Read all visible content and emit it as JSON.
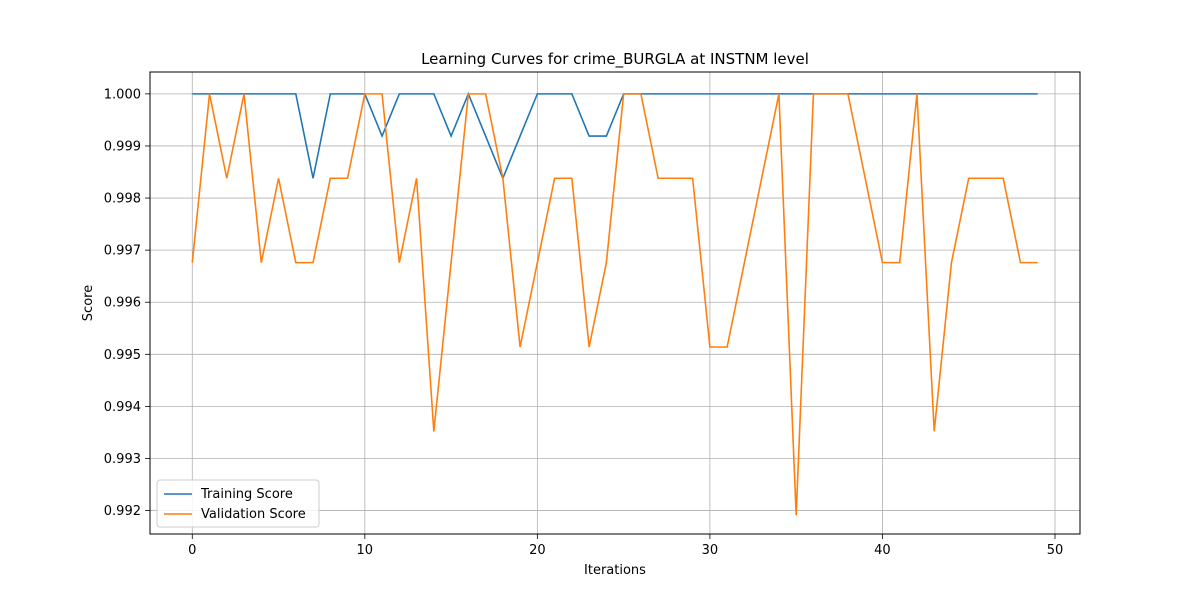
{
  "chart_data": {
    "type": "line",
    "title": "Learning Curves for crime_BURGLA at INSTNM level",
    "xlabel": "Iterations",
    "ylabel": "Score",
    "xlim": [
      -2.45,
      51.45
    ],
    "ylim": [
      0.99155,
      1.00042
    ],
    "x_ticks": [
      0,
      10,
      20,
      30,
      40,
      50
    ],
    "y_ticks": [
      0.992,
      0.993,
      0.994,
      0.995,
      0.996,
      0.997,
      0.998,
      0.999,
      1.0
    ],
    "y_tick_labels": [
      "0.992",
      "0.993",
      "0.994",
      "0.995",
      "0.996",
      "0.997",
      "0.998",
      "0.999",
      "1.000"
    ],
    "grid": true,
    "legend_position": "lower-left",
    "x": [
      0,
      1,
      2,
      3,
      4,
      5,
      6,
      7,
      8,
      9,
      10,
      11,
      12,
      13,
      14,
      15,
      16,
      17,
      18,
      19,
      20,
      21,
      22,
      23,
      24,
      25,
      26,
      27,
      28,
      29,
      30,
      31,
      32,
      33,
      34,
      35,
      36,
      37,
      38,
      39,
      40,
      41,
      42,
      43,
      44,
      45,
      46,
      47,
      48,
      49
    ],
    "series": [
      {
        "name": "Training Score",
        "color": "#1f77b4",
        "values": [
          1.0,
          1.0,
          1.0,
          1.0,
          1.0,
          1.0,
          1.0,
          0.99838,
          1.0,
          1.0,
          1.0,
          0.99919,
          1.0,
          1.0,
          1.0,
          0.99919,
          1.0,
          0.99919,
          0.99838,
          0.99919,
          1.0,
          1.0,
          1.0,
          0.99919,
          0.99919,
          1.0,
          1.0,
          1.0,
          1.0,
          1.0,
          1.0,
          1.0,
          1.0,
          1.0,
          1.0,
          1.0,
          1.0,
          1.0,
          1.0,
          1.0,
          1.0,
          1.0,
          1.0,
          1.0,
          1.0,
          1.0,
          1.0,
          1.0,
          1.0,
          1.0
        ]
      },
      {
        "name": "Validation Score",
        "color": "#ff7f0e",
        "values": [
          0.99676,
          1.0,
          0.99838,
          1.0,
          0.99676,
          0.99838,
          0.99676,
          0.99676,
          0.99838,
          0.99838,
          1.0,
          1.0,
          0.99676,
          0.99838,
          0.99352,
          0.99676,
          1.0,
          1.0,
          0.99838,
          0.99514,
          0.99676,
          0.99838,
          0.99838,
          0.99514,
          0.99676,
          1.0,
          1.0,
          0.99838,
          0.99838,
          0.99838,
          0.99514,
          0.99514,
          0.99676,
          0.99838,
          1.0,
          0.99191,
          1.0,
          1.0,
          1.0,
          0.99838,
          0.99676,
          0.99676,
          1.0,
          0.99352,
          0.99676,
          0.99838,
          0.99838,
          0.99838,
          0.99676,
          0.99676
        ]
      }
    ]
  }
}
